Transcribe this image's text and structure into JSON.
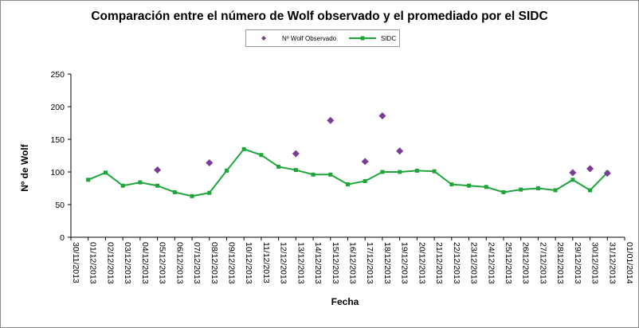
{
  "chart_data": {
    "type": "line",
    "title": "Comparación entre el número de Wolf observado y el promediado por el SIDC",
    "xlabel": "Fecha",
    "ylabel": "Nº de Wolf",
    "ylim": [
      0,
      250
    ],
    "yticks": [
      0,
      50,
      100,
      150,
      200,
      250
    ],
    "grid": false,
    "legend_position": "top-center",
    "categories": [
      "30/11/2013",
      "01/12/2013",
      "02/12/2013",
      "03/12/2013",
      "04/12/2013",
      "05/12/2013",
      "06/12/2013",
      "07/12/2013",
      "08/12/2013",
      "09/12/2013",
      "10/12/2013",
      "11/12/2013",
      "12/12/2013",
      "13/12/2013",
      "14/12/2013",
      "15/12/2013",
      "16/12/2013",
      "17/12/2013",
      "18/12/2013",
      "19/12/2013",
      "20/12/2013",
      "21/12/2013",
      "22/12/2013",
      "23/12/2013",
      "24/12/2013",
      "25/12/2013",
      "26/12/2013",
      "27/12/2013",
      "28/12/2013",
      "29/12/2013",
      "30/12/2013",
      "31/12/2013",
      "01/01/2014"
    ],
    "series": [
      {
        "name": "Nº Wolf Observado",
        "style": "markers",
        "marker": "diamond",
        "color": "#7a3c96",
        "values": [
          null,
          null,
          null,
          null,
          null,
          103,
          null,
          null,
          114,
          null,
          null,
          null,
          null,
          128,
          null,
          179,
          null,
          116,
          186,
          132,
          null,
          null,
          null,
          null,
          null,
          null,
          null,
          null,
          null,
          99,
          105,
          98,
          null
        ]
      },
      {
        "name": "SIDC",
        "style": "line-markers",
        "marker": "square",
        "color": "#1ea53a",
        "values": [
          null,
          88,
          99,
          79,
          84,
          79,
          69,
          63,
          68,
          102,
          135,
          126,
          108,
          103,
          96,
          96,
          81,
          86,
          100,
          100,
          102,
          101,
          81,
          79,
          77,
          69,
          73,
          75,
          72,
          88,
          72,
          99,
          null
        ]
      }
    ]
  }
}
